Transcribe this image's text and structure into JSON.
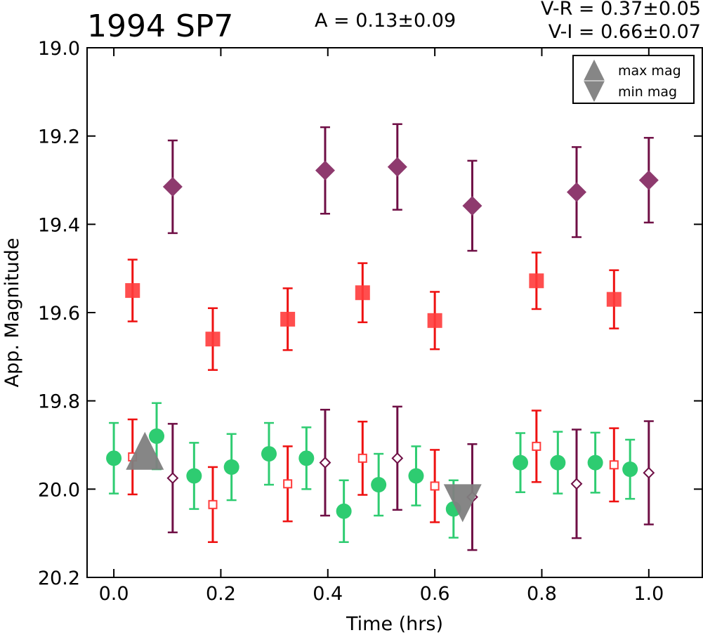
{
  "chart_data": {
    "type": "scatter",
    "title": "1994 SP7",
    "annotations": [
      "A  = 0.13±0.09",
      "V-R = 0.37±0.05",
      "V-I  = 0.66±0.07"
    ],
    "xlabel": "Time (hrs)",
    "ylabel": "App. Magnitude",
    "xlim": [
      -0.05,
      1.1
    ],
    "ylim": [
      20.2,
      19.0
    ],
    "y_inverted": true,
    "xticks": [
      "0.0",
      "0.2",
      "0.4",
      "0.6",
      "0.8",
      "1.0"
    ],
    "xtick_values": [
      0.0,
      0.2,
      0.4,
      0.6,
      0.8,
      1.0
    ],
    "yticks": [
      "19.0",
      "19.2",
      "19.4",
      "19.6",
      "19.8",
      "20.0",
      "20.2"
    ],
    "ytick_values": [
      19.0,
      19.2,
      19.4,
      19.6,
      19.8,
      20.0,
      20.2
    ],
    "grid": false,
    "legend_position": "top-right",
    "legend": [
      {
        "label": "max mag",
        "marker": "triangle-up"
      },
      {
        "label": "min mag",
        "marker": "triangle-down"
      }
    ],
    "colors": {
      "green": "#2ecc71",
      "green_err": "#2ecc71",
      "red": "#ff3b3b",
      "red_err": "#ee1111",
      "purple": "#8e3a6e",
      "purple_err": "#6f0f45",
      "gray": "#7f7f7f"
    },
    "series": [
      {
        "marker": "circle-filled",
        "color": "green",
        "points": [
          {
            "x": 0.0,
            "y": 19.93,
            "err": 0.08
          },
          {
            "x": 0.08,
            "y": 19.88,
            "err": 0.075
          },
          {
            "x": 0.15,
            "y": 19.97,
            "err": 0.075
          },
          {
            "x": 0.22,
            "y": 19.95,
            "err": 0.075
          },
          {
            "x": 0.29,
            "y": 19.92,
            "err": 0.07
          },
          {
            "x": 0.36,
            "y": 19.93,
            "err": 0.07
          },
          {
            "x": 0.43,
            "y": 20.05,
            "err": 0.07
          },
          {
            "x": 0.495,
            "y": 19.99,
            "err": 0.07
          },
          {
            "x": 0.565,
            "y": 19.97,
            "err": 0.067
          },
          {
            "x": 0.635,
            "y": 20.045,
            "err": 0.065
          },
          {
            "x": 0.76,
            "y": 19.94,
            "err": 0.067
          },
          {
            "x": 0.83,
            "y": 19.94,
            "err": 0.07
          },
          {
            "x": 0.9,
            "y": 19.94,
            "err": 0.068
          },
          {
            "x": 0.965,
            "y": 19.955,
            "err": 0.067
          }
        ]
      },
      {
        "marker": "square-filled",
        "color": "red",
        "points": [
          {
            "x": 0.035,
            "y": 19.55,
            "err": 0.07
          },
          {
            "x": 0.185,
            "y": 19.66,
            "err": 0.07
          },
          {
            "x": 0.325,
            "y": 19.615,
            "err": 0.07
          },
          {
            "x": 0.465,
            "y": 19.555,
            "err": 0.067
          },
          {
            "x": 0.6,
            "y": 19.618,
            "err": 0.065
          },
          {
            "x": 0.79,
            "y": 19.528,
            "err": 0.064
          },
          {
            "x": 0.935,
            "y": 19.57,
            "err": 0.066
          }
        ]
      },
      {
        "marker": "diamond-filled",
        "color": "purple",
        "points": [
          {
            "x": 0.11,
            "y": 19.315,
            "err": 0.105
          },
          {
            "x": 0.395,
            "y": 19.278,
            "err": 0.098
          },
          {
            "x": 0.53,
            "y": 19.27,
            "err": 0.097
          },
          {
            "x": 0.67,
            "y": 19.358,
            "err": 0.102
          },
          {
            "x": 0.865,
            "y": 19.327,
            "err": 0.102
          },
          {
            "x": 1.0,
            "y": 19.3,
            "err": 0.096
          }
        ]
      },
      {
        "marker": "square-open",
        "color": "red",
        "points": [
          {
            "x": 0.035,
            "y": 19.927,
            "err": 0.085
          },
          {
            "x": 0.185,
            "y": 20.035,
            "err": 0.085
          },
          {
            "x": 0.325,
            "y": 19.988,
            "err": 0.085
          },
          {
            "x": 0.465,
            "y": 19.93,
            "err": 0.083
          },
          {
            "x": 0.6,
            "y": 19.993,
            "err": 0.082
          },
          {
            "x": 0.79,
            "y": 19.903,
            "err": 0.081
          },
          {
            "x": 0.935,
            "y": 19.945,
            "err": 0.083
          }
        ]
      },
      {
        "marker": "diamond-open",
        "color": "purple",
        "points": [
          {
            "x": 0.11,
            "y": 19.975,
            "err": 0.123
          },
          {
            "x": 0.395,
            "y": 19.94,
            "err": 0.12
          },
          {
            "x": 0.53,
            "y": 19.93,
            "err": 0.117
          },
          {
            "x": 0.67,
            "y": 20.018,
            "err": 0.12
          },
          {
            "x": 0.865,
            "y": 19.988,
            "err": 0.123
          },
          {
            "x": 1.0,
            "y": 19.963,
            "err": 0.117
          }
        ]
      },
      {
        "marker": "triangle-up",
        "color": "gray",
        "name": "max mag",
        "points": [
          {
            "x": 0.058,
            "y": 19.92
          }
        ]
      },
      {
        "marker": "triangle-down",
        "color": "gray",
        "name": "min mag",
        "points": [
          {
            "x": 0.652,
            "y": 20.025
          }
        ]
      }
    ]
  }
}
